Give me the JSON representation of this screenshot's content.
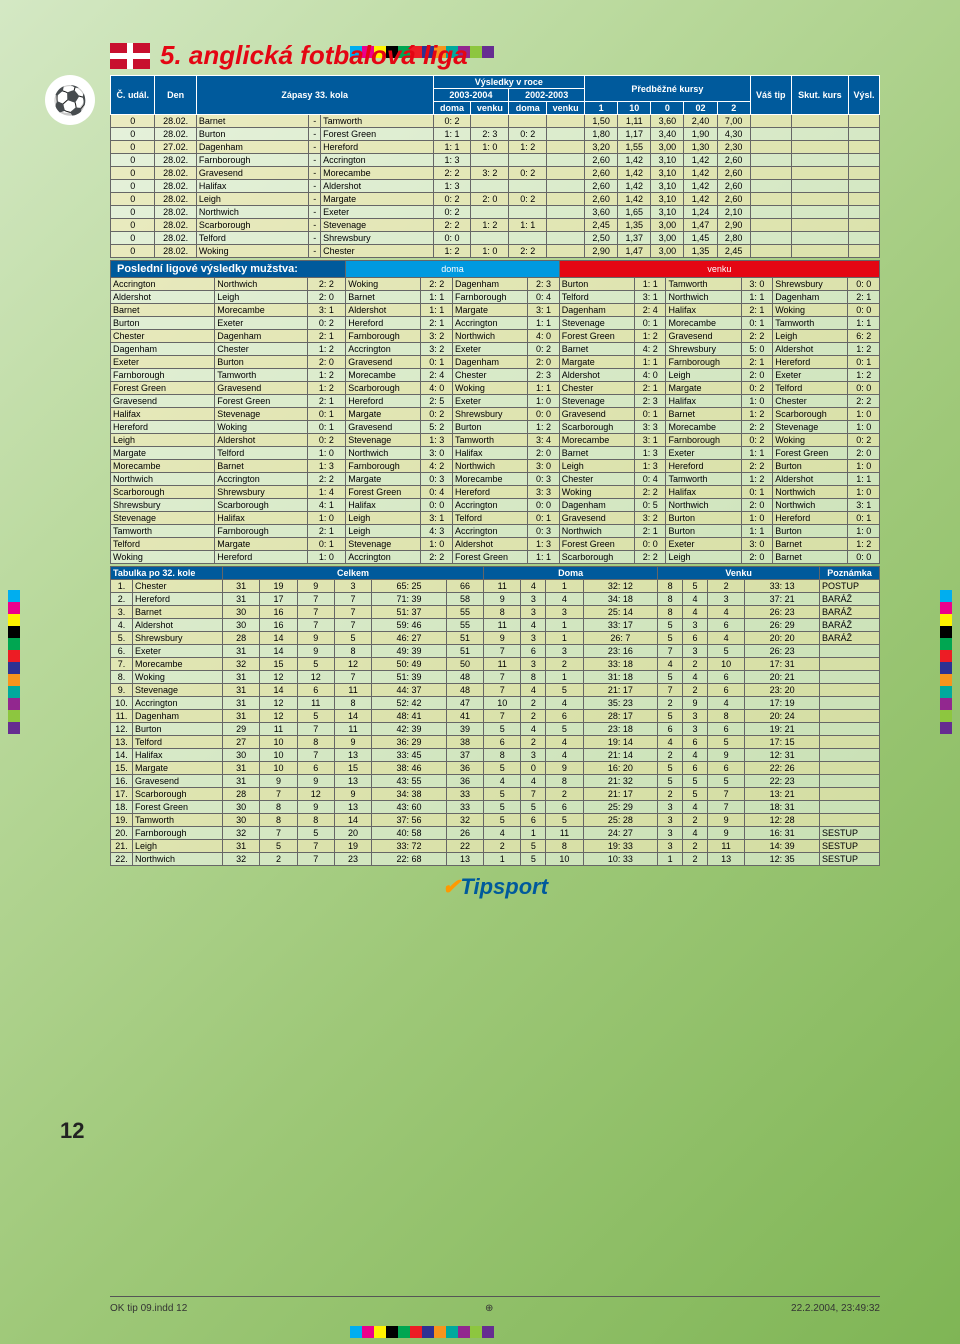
{
  "title": "5. anglická fotbalová liga",
  "colorbar": [
    "#00aeef",
    "#ec008c",
    "#fff200",
    "#000000",
    "#00a651",
    "#ed1c24",
    "#2e3192",
    "#f7941d",
    "#00a99d",
    "#92278f",
    "#8dc63f",
    "#662d91"
  ],
  "hdr1": {
    "c": "Č.\nudál.",
    "den": "Den",
    "mid": "Zápasy 33. kola",
    "res": "Výsledky v roce",
    "odds_t": "Předběžné kursy",
    "tip": "Váš tip",
    "skut": "Skut.\nkurs",
    "vysl": "Výsl."
  },
  "hdr2": {
    "y1": "2003-2004",
    "y2": "2002-2003"
  },
  "hdr3": {
    "d1": "doma",
    "v1": "venku",
    "d2": "doma",
    "v2": "venku",
    "o1": "1",
    "o10": "10",
    "o0": "0",
    "o02": "02",
    "o2": "2"
  },
  "matches": [
    [
      "0",
      "28.02.",
      "Barnet",
      "-",
      "Tamworth",
      "0: 2",
      "",
      "",
      "",
      "1,50",
      "1,11",
      "3,60",
      "2,40",
      "7,00"
    ],
    [
      "0",
      "28.02.",
      "Burton",
      "-",
      "Forest Green",
      "1: 1",
      "2: 3",
      "0: 2",
      "",
      "1,80",
      "1,17",
      "3,40",
      "1,90",
      "4,30"
    ],
    [
      "0",
      "27.02.",
      "Dagenham",
      "-",
      "Hereford",
      "1: 1",
      "1: 0",
      "1: 2",
      "",
      "3,20",
      "1,55",
      "3,00",
      "1,30",
      "2,30"
    ],
    [
      "0",
      "28.02.",
      "Farnborough",
      "-",
      "Accrington",
      "1: 3",
      "",
      "",
      "",
      "2,60",
      "1,42",
      "3,10",
      "1,42",
      "2,60"
    ],
    [
      "0",
      "28.02.",
      "Gravesend",
      "-",
      "Morecambe",
      "2: 2",
      "3: 2",
      "0: 2",
      "",
      "2,60",
      "1,42",
      "3,10",
      "1,42",
      "2,60"
    ],
    [
      "0",
      "28.02.",
      "Halifax",
      "-",
      "Aldershot",
      "1: 3",
      "",
      "",
      "",
      "2,60",
      "1,42",
      "3,10",
      "1,42",
      "2,60"
    ],
    [
      "0",
      "28.02.",
      "Leigh",
      "-",
      "Margate",
      "0: 2",
      "2: 0",
      "0: 2",
      "",
      "2,60",
      "1,42",
      "3,10",
      "1,42",
      "2,60"
    ],
    [
      "0",
      "28.02.",
      "Northwich",
      "-",
      "Exeter",
      "0: 2",
      "",
      "",
      "",
      "3,60",
      "1,65",
      "3,10",
      "1,24",
      "2,10"
    ],
    [
      "0",
      "28.02.",
      "Scarborough",
      "-",
      "Stevenage",
      "2: 2",
      "1: 2",
      "1: 1",
      "",
      "2,45",
      "1,35",
      "3,00",
      "1,47",
      "2,90"
    ],
    [
      "0",
      "28.02.",
      "Telford",
      "-",
      "Shrewsbury",
      "0: 0",
      "",
      "",
      "",
      "2,50",
      "1,37",
      "3,00",
      "1,45",
      "2,80"
    ],
    [
      "0",
      "28.02.",
      "Woking",
      "-",
      "Chester",
      "1: 2",
      "1: 0",
      "2: 2",
      "",
      "2,90",
      "1,47",
      "3,00",
      "1,35",
      "2,45"
    ]
  ],
  "sect_rs": "Poslední ligové výsledky mužstva:",
  "rs_lbl_d": "doma",
  "rs_lbl_v": "venku",
  "results": [
    [
      "Accrington",
      "Northwich",
      "2: 2",
      "Woking",
      "2: 2",
      "Dagenham",
      "2: 3",
      "Burton",
      "1: 1",
      "Tamworth",
      "3: 0",
      "Shrewsbury",
      "0: 0"
    ],
    [
      "Aldershot",
      "Leigh",
      "2: 0",
      "Barnet",
      "1: 1",
      "Farnborough",
      "0: 4",
      "Telford",
      "3: 1",
      "Northwich",
      "1: 1",
      "Dagenham",
      "2: 1"
    ],
    [
      "Barnet",
      "Morecambe",
      "3: 1",
      "Aldershot",
      "1: 1",
      "Margate",
      "3: 1",
      "Dagenham",
      "2: 4",
      "Halifax",
      "2: 1",
      "Woking",
      "0: 0"
    ],
    [
      "Burton",
      "Exeter",
      "0: 2",
      "Hereford",
      "2: 1",
      "Accrington",
      "1: 1",
      "Stevenage",
      "0: 1",
      "Morecambe",
      "0: 1",
      "Tamworth",
      "1: 1"
    ],
    [
      "Chester",
      "Dagenham",
      "2: 1",
      "Farnborough",
      "3: 2",
      "Northwich",
      "4: 0",
      "Forest Green",
      "1: 2",
      "Gravesend",
      "2: 2",
      "Leigh",
      "6: 2"
    ],
    [
      "Dagenham",
      "Chester",
      "1: 2",
      "Accrington",
      "3: 2",
      "Exeter",
      "0: 2",
      "Barnet",
      "4: 2",
      "Shrewsbury",
      "5: 0",
      "Aldershot",
      "1: 2"
    ],
    [
      "Exeter",
      "Burton",
      "2: 0",
      "Gravesend",
      "0: 1",
      "Dagenham",
      "2: 0",
      "Margate",
      "1: 1",
      "Farnborough",
      "2: 1",
      "Hereford",
      "0: 1"
    ],
    [
      "Farnborough",
      "Tamworth",
      "1: 2",
      "Morecambe",
      "2: 4",
      "Chester",
      "2: 3",
      "Aldershot",
      "4: 0",
      "Leigh",
      "2: 0",
      "Exeter",
      "1: 2"
    ],
    [
      "Forest Green",
      "Gravesend",
      "1: 2",
      "Scarborough",
      "4: 0",
      "Woking",
      "1: 1",
      "Chester",
      "2: 1",
      "Margate",
      "0: 2",
      "Telford",
      "0: 0"
    ],
    [
      "Gravesend",
      "Forest Green",
      "2: 1",
      "Hereford",
      "2: 5",
      "Exeter",
      "1: 0",
      "Stevenage",
      "2: 3",
      "Halifax",
      "1: 0",
      "Chester",
      "2: 2"
    ],
    [
      "Halifax",
      "Stevenage",
      "0: 1",
      "Margate",
      "0: 2",
      "Shrewsbury",
      "0: 0",
      "Gravesend",
      "0: 1",
      "Barnet",
      "1: 2",
      "Scarborough",
      "1: 0"
    ],
    [
      "Hereford",
      "Woking",
      "0: 1",
      "Gravesend",
      "5: 2",
      "Burton",
      "1: 2",
      "Scarborough",
      "3: 3",
      "Morecambe",
      "2: 2",
      "Stevenage",
      "1: 0"
    ],
    [
      "Leigh",
      "Aldershot",
      "0: 2",
      "Stevenage",
      "1: 3",
      "Tamworth",
      "3: 4",
      "Morecambe",
      "3: 1",
      "Farnborough",
      "0: 2",
      "Woking",
      "0: 2"
    ],
    [
      "Margate",
      "Telford",
      "1: 0",
      "Northwich",
      "3: 0",
      "Halifax",
      "2: 0",
      "Barnet",
      "1: 3",
      "Exeter",
      "1: 1",
      "Forest Green",
      "2: 0"
    ],
    [
      "Morecambe",
      "Barnet",
      "1: 3",
      "Farnborough",
      "4: 2",
      "Northwich",
      "3: 0",
      "Leigh",
      "1: 3",
      "Hereford",
      "2: 2",
      "Burton",
      "1: 0"
    ],
    [
      "Northwich",
      "Accrington",
      "2: 2",
      "Margate",
      "0: 3",
      "Morecambe",
      "0: 3",
      "Chester",
      "0: 4",
      "Tamworth",
      "1: 2",
      "Aldershot",
      "1: 1"
    ],
    [
      "Scarborough",
      "Shrewsbury",
      "1: 4",
      "Forest Green",
      "0: 4",
      "Hereford",
      "3: 3",
      "Woking",
      "2: 2",
      "Halifax",
      "0: 1",
      "Northwich",
      "1: 0"
    ],
    [
      "Shrewsbury",
      "Scarborough",
      "4: 1",
      "Halifax",
      "0: 0",
      "Accrington",
      "0: 0",
      "Dagenham",
      "0: 5",
      "Northwich",
      "2: 0",
      "Northwich",
      "3: 1"
    ],
    [
      "Stevenage",
      "Halifax",
      "1: 0",
      "Leigh",
      "3: 1",
      "Telford",
      "0: 1",
      "Gravesend",
      "3: 2",
      "Burton",
      "1: 0",
      "Hereford",
      "0: 1"
    ],
    [
      "Tamworth",
      "Farnborough",
      "2: 1",
      "Leigh",
      "4: 3",
      "Accrington",
      "0: 3",
      "Northwich",
      "2: 1",
      "Burton",
      "1: 1",
      "Burton",
      "1: 0"
    ],
    [
      "Telford",
      "Margate",
      "0: 1",
      "Stevenage",
      "1: 0",
      "Aldershot",
      "1: 3",
      "Forest Green",
      "0: 0",
      "Exeter",
      "3: 0",
      "Barnet",
      "1: 2"
    ],
    [
      "Woking",
      "Hereford",
      "1: 0",
      "Accrington",
      "2: 2",
      "Forest Green",
      "1: 1",
      "Scarborough",
      "2: 2",
      "Leigh",
      "2: 0",
      "Barnet",
      "0: 0"
    ]
  ],
  "st_hdr": {
    "t": "Tabulka po 32. kole",
    "c": "Celkem",
    "d": "Doma",
    "v": "Venku",
    "p": "Poznámka"
  },
  "standings": [
    [
      "1.",
      "Chester",
      "31",
      "19",
      "9",
      "3",
      "65: 25",
      "66",
      "11",
      "4",
      "1",
      "32: 12",
      "8",
      "5",
      "2",
      "33: 13",
      "POSTUP"
    ],
    [
      "2.",
      "Hereford",
      "31",
      "17",
      "7",
      "7",
      "71: 39",
      "58",
      "9",
      "3",
      "4",
      "34: 18",
      "8",
      "4",
      "3",
      "37: 21",
      "BARÁŽ"
    ],
    [
      "3.",
      "Barnet",
      "30",
      "16",
      "7",
      "7",
      "51: 37",
      "55",
      "8",
      "3",
      "3",
      "25: 14",
      "8",
      "4",
      "4",
      "26: 23",
      "BARÁŽ"
    ],
    [
      "4.",
      "Aldershot",
      "30",
      "16",
      "7",
      "7",
      "59: 46",
      "55",
      "11",
      "4",
      "1",
      "33: 17",
      "5",
      "3",
      "6",
      "26: 29",
      "BARÁŽ"
    ],
    [
      "5.",
      "Shrewsbury",
      "28",
      "14",
      "9",
      "5",
      "46: 27",
      "51",
      "9",
      "3",
      "1",
      "26: 7",
      "5",
      "6",
      "4",
      "20: 20",
      "BARÁŽ"
    ],
    [
      "6.",
      "Exeter",
      "31",
      "14",
      "9",
      "8",
      "49: 39",
      "51",
      "7",
      "6",
      "3",
      "23: 16",
      "7",
      "3",
      "5",
      "26: 23",
      ""
    ],
    [
      "7.",
      "Morecambe",
      "32",
      "15",
      "5",
      "12",
      "50: 49",
      "50",
      "11",
      "3",
      "2",
      "33: 18",
      "4",
      "2",
      "10",
      "17: 31",
      ""
    ],
    [
      "8.",
      "Woking",
      "31",
      "12",
      "12",
      "7",
      "51: 39",
      "48",
      "7",
      "8",
      "1",
      "31: 18",
      "5",
      "4",
      "6",
      "20: 21",
      ""
    ],
    [
      "9.",
      "Stevenage",
      "31",
      "14",
      "6",
      "11",
      "44: 37",
      "48",
      "7",
      "4",
      "5",
      "21: 17",
      "7",
      "2",
      "6",
      "23: 20",
      ""
    ],
    [
      "10.",
      "Accrington",
      "31",
      "12",
      "11",
      "8",
      "52: 42",
      "47",
      "10",
      "2",
      "4",
      "35: 23",
      "2",
      "9",
      "4",
      "17: 19",
      ""
    ],
    [
      "11.",
      "Dagenham",
      "31",
      "12",
      "5",
      "14",
      "48: 41",
      "41",
      "7",
      "2",
      "6",
      "28: 17",
      "5",
      "3",
      "8",
      "20: 24",
      ""
    ],
    [
      "12.",
      "Burton",
      "29",
      "11",
      "7",
      "11",
      "42: 39",
      "39",
      "5",
      "4",
      "5",
      "23: 18",
      "6",
      "3",
      "6",
      "19: 21",
      ""
    ],
    [
      "13.",
      "Telford",
      "27",
      "10",
      "8",
      "9",
      "36: 29",
      "38",
      "6",
      "2",
      "4",
      "19: 14",
      "4",
      "6",
      "5",
      "17: 15",
      ""
    ],
    [
      "14.",
      "Halifax",
      "30",
      "10",
      "7",
      "13",
      "33: 45",
      "37",
      "8",
      "3",
      "4",
      "21: 14",
      "2",
      "4",
      "9",
      "12: 31",
      ""
    ],
    [
      "15.",
      "Margate",
      "31",
      "10",
      "6",
      "15",
      "38: 46",
      "36",
      "5",
      "0",
      "9",
      "16: 20",
      "5",
      "6",
      "6",
      "22: 26",
      ""
    ],
    [
      "16.",
      "Gravesend",
      "31",
      "9",
      "9",
      "13",
      "43: 55",
      "36",
      "4",
      "4",
      "8",
      "21: 32",
      "5",
      "5",
      "5",
      "22: 23",
      ""
    ],
    [
      "17.",
      "Scarborough",
      "28",
      "7",
      "12",
      "9",
      "34: 38",
      "33",
      "5",
      "7",
      "2",
      "21: 17",
      "2",
      "5",
      "7",
      "13: 21",
      ""
    ],
    [
      "18.",
      "Forest Green",
      "30",
      "8",
      "9",
      "13",
      "43: 60",
      "33",
      "5",
      "5",
      "6",
      "25: 29",
      "3",
      "4",
      "7",
      "18: 31",
      ""
    ],
    [
      "19.",
      "Tamworth",
      "30",
      "8",
      "8",
      "14",
      "37: 56",
      "32",
      "5",
      "6",
      "5",
      "25: 28",
      "3",
      "2",
      "9",
      "12: 28",
      ""
    ],
    [
      "20.",
      "Farnborough",
      "32",
      "7",
      "5",
      "20",
      "40: 58",
      "26",
      "4",
      "1",
      "11",
      "24: 27",
      "3",
      "4",
      "9",
      "16: 31",
      "SESTUP"
    ],
    [
      "21.",
      "Leigh",
      "31",
      "5",
      "7",
      "19",
      "33: 72",
      "22",
      "2",
      "5",
      "8",
      "19: 33",
      "3",
      "2",
      "11",
      "14: 39",
      "SESTUP"
    ],
    [
      "22.",
      "Northwich",
      "32",
      "2",
      "7",
      "23",
      "22: 68",
      "13",
      "1",
      "5",
      "10",
      "10: 33",
      "1",
      "2",
      "13",
      "12: 35",
      "SESTUP"
    ]
  ],
  "logo": "Tipsport",
  "footer_l": "OK tip 09.indd   12",
  "footer_r": "22.2.2004, 23:49:32",
  "page_num": "12"
}
